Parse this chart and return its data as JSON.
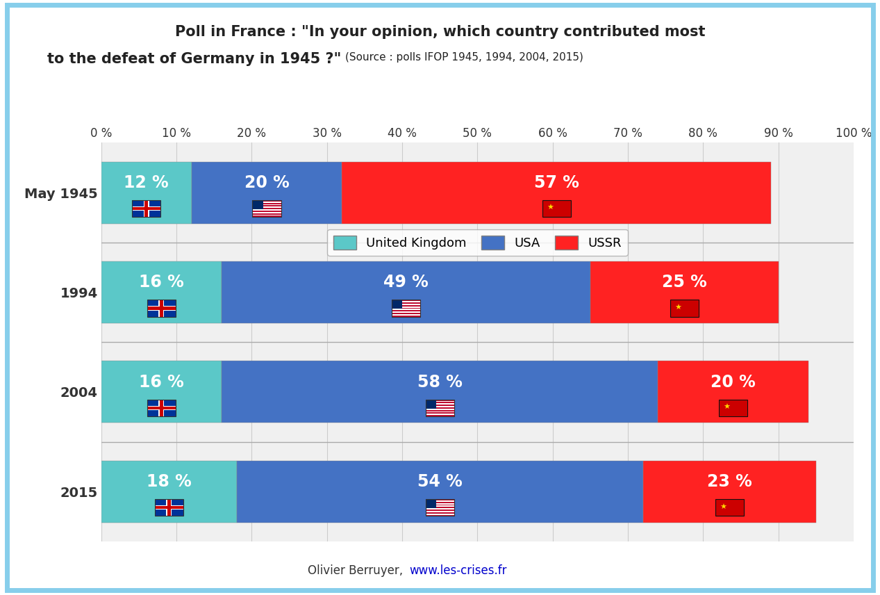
{
  "title_line1": "Poll in France : \"In your opinion, which country contributed most",
  "title_line2_bold": "to the defeat of Germany in 1945 ?\"",
  "title_line2_source": "(Source : polls IFOP 1945, 1994, 2004, 2015)",
  "years": [
    "May 1945",
    "1994",
    "2004",
    "2015"
  ],
  "uk_values": [
    12,
    16,
    16,
    18
  ],
  "usa_values": [
    20,
    49,
    58,
    54
  ],
  "ussr_values": [
    57,
    25,
    20,
    23
  ],
  "uk_color": "#5BC8C8",
  "usa_color": "#4472C4",
  "ussr_color": "#FF2222",
  "legend_labels": [
    "United Kingdom",
    "USA",
    "USSR"
  ],
  "xticks": [
    0,
    10,
    20,
    30,
    40,
    50,
    60,
    70,
    80,
    90,
    100
  ],
  "footer_normal": "Olivier Berruyer, ",
  "footer_link": "www.les-crises.fr",
  "bg_color": "#FFFFFF",
  "border_color": "#87CEEB",
  "bar_height": 0.62,
  "text_fontsize": 17,
  "tick_fontsize": 12,
  "year_fontsize": 14
}
